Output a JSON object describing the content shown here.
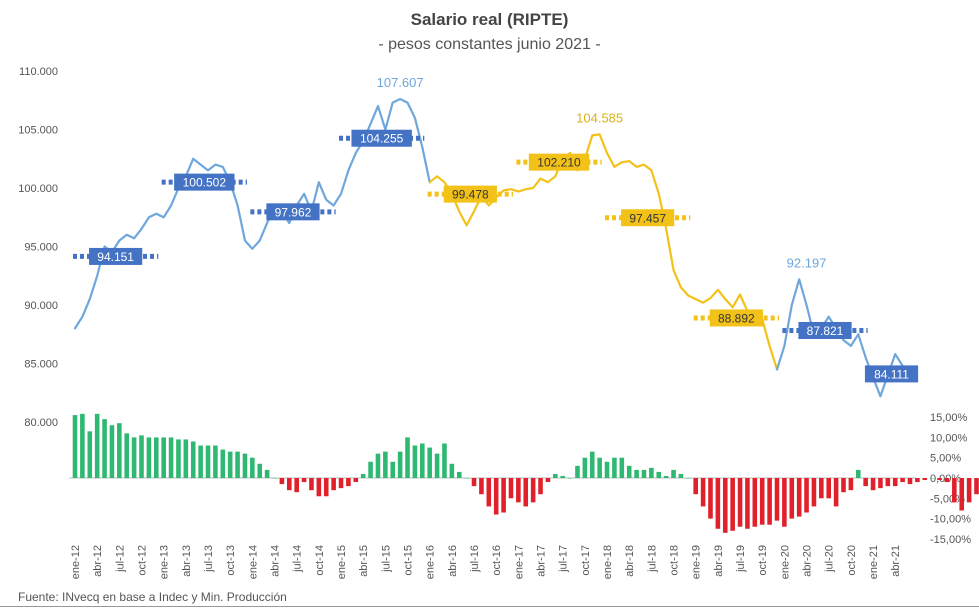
{
  "title": "Salario real (RIPTE)",
  "subtitle": "- pesos constantes junio 2021 -",
  "source": "Fuente: INvecq en base a Indec y Min. Producción",
  "chart_data": {
    "type": "line",
    "title": "Salario real (RIPTE)",
    "subtitle": "- pesos constantes junio 2021 -",
    "left_axis": {
      "ticks": [
        "110.000",
        "105.000",
        "100.000",
        "95.000",
        "90.000",
        "85.000",
        "80.000"
      ],
      "tick_values": [
        110000,
        105000,
        100000,
        95000,
        90000,
        85000,
        80000
      ],
      "range": [
        80000,
        110000
      ]
    },
    "right_axis": {
      "ticks": [
        "15,00%",
        "10,00%",
        "5,00%",
        "0,00%",
        "-5,00%",
        "-10,00%",
        "-15,00%"
      ],
      "tick_values": [
        15,
        10,
        5,
        0,
        -5,
        -10,
        -15
      ],
      "range": [
        -15,
        15
      ]
    },
    "x_tick_labels": [
      "ene-12",
      "abr-12",
      "jul-12",
      "oct-12",
      "ene-13",
      "abr-13",
      "jul-13",
      "oct-13",
      "ene-14",
      "abr-14",
      "jul-14",
      "oct-14",
      "ene-15",
      "abr-15",
      "jul-15",
      "oct-15",
      "ene-16",
      "abr-16",
      "jul-16",
      "oct-16",
      "ene-17",
      "abr-17",
      "jul-17",
      "oct-17",
      "ene-18",
      "abr-18",
      "jul-18",
      "oct-18",
      "ene-19",
      "abr-19",
      "jul-19",
      "oct-19",
      "ene-20",
      "abr-20",
      "jul-20",
      "oct-20",
      "ene-21",
      "abr-21"
    ],
    "start_month": "ene-12",
    "salary_series": [
      {
        "color": "#6fa7dc",
        "values": [
          88000,
          89000,
          90500,
          92500,
          95000,
          94500,
          95500,
          96000,
          95700,
          96500,
          97500,
          97800,
          97500,
          98500,
          100000,
          101000,
          102500,
          102000,
          101500,
          102000,
          101800,
          100500,
          98500,
          95500,
          94800,
          95500,
          97000,
          98500,
          98000,
          97000,
          98500,
          99500,
          98000,
          100500,
          99000,
          98500,
          99500,
          101500,
          103000,
          104000,
          105500,
          107000,
          105000,
          107300,
          107607,
          107300,
          106000,
          103500,
          100500
        ]
      },
      {
        "color": "#f2c218",
        "values": [
          100500,
          101000,
          100500,
          99500,
          98000,
          96800,
          98000,
          99300,
          98500,
          99200,
          99800,
          99900,
          99700,
          99900,
          100000,
          100800,
          100500,
          101000,
          102500,
          103000,
          101500,
          102500,
          104500,
          104585,
          103000,
          101800,
          102200,
          102300,
          101800,
          102000,
          101500,
          99500,
          96500,
          93000,
          91500,
          90800,
          90500,
          90200,
          90600,
          91300,
          90500,
          89800,
          90900,
          89500,
          88500,
          88800,
          86500,
          84500
        ]
      },
      {
        "color": "#6fa7dc",
        "values": [
          84500,
          86500,
          90000,
          92197,
          90000,
          87500,
          88000,
          89000,
          88000,
          87000,
          86500,
          87500,
          85500,
          83800,
          82200,
          84000,
          85800,
          84800
        ]
      }
    ],
    "period_averages": [
      {
        "label": "94.151",
        "value": 94151,
        "color": "#4472c4",
        "text_color": "#ffffff",
        "from_index": 0,
        "to_index": 11
      },
      {
        "label": "100.502",
        "value": 100502,
        "color": "#4472c4",
        "text_color": "#ffffff",
        "from_index": 12,
        "to_index": 23
      },
      {
        "label": "97.962",
        "value": 97962,
        "color": "#4472c4",
        "text_color": "#ffffff",
        "from_index": 24,
        "to_index": 35
      },
      {
        "label": "104.255",
        "value": 104255,
        "color": "#4472c4",
        "text_color": "#ffffff",
        "from_index": 36,
        "to_index": 47
      },
      {
        "label": "99.478",
        "value": 99478,
        "color": "#f2c218",
        "text_color": "#333333",
        "from_index": 48,
        "to_index": 59
      },
      {
        "label": "102.210",
        "value": 102210,
        "color": "#f2c218",
        "text_color": "#333333",
        "from_index": 60,
        "to_index": 71
      },
      {
        "label": "97.457",
        "value": 97457,
        "color": "#f2c218",
        "text_color": "#333333",
        "from_index": 72,
        "to_index": 83
      },
      {
        "label": "88.892",
        "value": 88892,
        "color": "#f2c218",
        "text_color": "#333333",
        "from_index": 84,
        "to_index": 95
      },
      {
        "label": "87.821",
        "value": 87821,
        "color": "#4472c4",
        "text_color": "#ffffff",
        "from_index": 96,
        "to_index": 107
      },
      {
        "label": "84.111",
        "value": 84111,
        "color": "#4472c4",
        "text_color": "#ffffff",
        "from_index": 108,
        "to_index": 113
      }
    ],
    "peak_annotations": [
      {
        "label": "107.607",
        "value": 107607,
        "index": 44,
        "color": "#6fa7dc"
      },
      {
        "label": "104.585",
        "value": 104585,
        "index": 71,
        "color": "#d9b21a"
      },
      {
        "label": "92.197",
        "value": 92197,
        "index": 99,
        "color": "#6fa7dc"
      }
    ],
    "yoy_variation_pct": {
      "positive_color": "#2eb872",
      "negative_color": "#e0202a",
      "values": [
        15.5,
        15.8,
        11.5,
        15.8,
        14.5,
        13,
        13.5,
        11,
        10,
        10.5,
        10,
        10,
        10,
        10,
        9.5,
        9.5,
        9,
        8,
        8,
        8,
        7,
        6.5,
        6.5,
        6,
        5,
        3.5,
        2,
        0,
        -1.5,
        -3,
        -3.5,
        -1,
        -3,
        -4.5,
        -4.5,
        -3,
        -2.5,
        -2,
        -1,
        1,
        4,
        6,
        6.5,
        4,
        6.5,
        10,
        8,
        8.5,
        7.5,
        6,
        8.5,
        3.5,
        1.5,
        0,
        -2,
        -4,
        -7,
        -9,
        -8.5,
        -5,
        -6,
        -7,
        -6,
        -4,
        -1,
        1,
        0.5,
        0,
        3,
        5,
        6.5,
        5,
        4,
        5,
        5,
        3,
        2,
        2,
        2.5,
        1.5,
        0.5,
        2,
        1,
        0,
        -4,
        -7,
        -10,
        -12.5,
        -13.5,
        -13,
        -12,
        -12.5,
        -12,
        -11.5,
        -11.5,
        -10.5,
        -12,
        -10,
        -9.5,
        -8.5,
        -7,
        -5,
        -5,
        -7,
        -3.5,
        -3,
        2,
        -2,
        -3,
        -2.5,
        -2,
        -2,
        -1,
        -1.5,
        -1,
        -0.5,
        0,
        -0.5,
        -1,
        -6,
        -8,
        -6,
        -4,
        -3,
        -3,
        -3.5
      ]
    }
  }
}
